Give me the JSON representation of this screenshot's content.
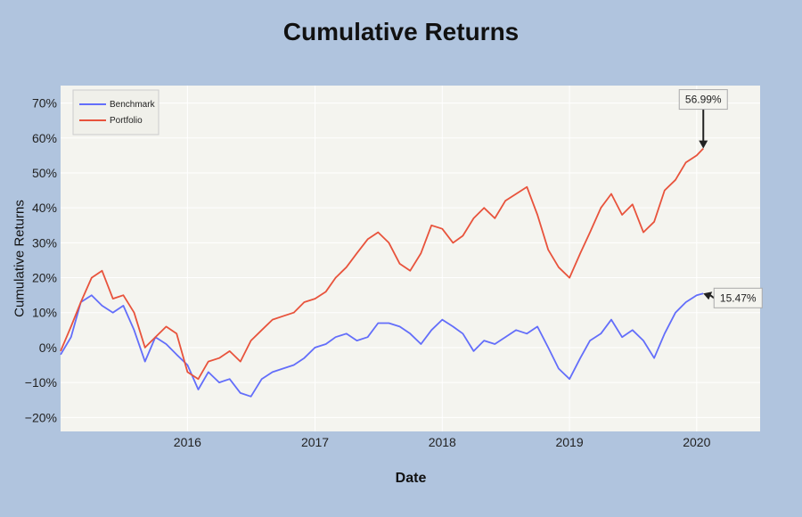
{
  "colors": {
    "background": "#b0c4de",
    "plot_background": "#f4f4ef",
    "benchmark": "#636efa",
    "portfolio": "#e8533c"
  },
  "chart_data": {
    "type": "line",
    "title": "Cumulative Returns",
    "xlabel": "Date",
    "ylabel": "Cumulative Returns",
    "y_unit": "%",
    "xlim": [
      "2015-01-02",
      "2020-07-01"
    ],
    "ylim": [
      -24,
      75
    ],
    "x_ticks": [
      "2016",
      "2017",
      "2018",
      "2019",
      "2020"
    ],
    "y_ticks": [
      "−20%",
      "−10%",
      "0%",
      "10%",
      "20%",
      "30%",
      "40%",
      "50%",
      "60%",
      "70%"
    ],
    "grid": true,
    "legend_position": "top-left",
    "series": [
      {
        "name": "Benchmark",
        "color": "#636efa",
        "points": [
          [
            "2015-01-02",
            -2
          ],
          [
            "2015-02-01",
            3
          ],
          [
            "2015-03-01",
            13
          ],
          [
            "2015-04-01",
            15
          ],
          [
            "2015-05-01",
            12
          ],
          [
            "2015-06-01",
            10
          ],
          [
            "2015-07-01",
            12
          ],
          [
            "2015-08-01",
            5
          ],
          [
            "2015-09-01",
            -4
          ],
          [
            "2015-10-01",
            3
          ],
          [
            "2015-11-01",
            1
          ],
          [
            "2015-12-01",
            -2
          ],
          [
            "2016-01-01",
            -5
          ],
          [
            "2016-02-01",
            -12
          ],
          [
            "2016-03-01",
            -7
          ],
          [
            "2016-04-01",
            -10
          ],
          [
            "2016-05-01",
            -9
          ],
          [
            "2016-06-01",
            -13
          ],
          [
            "2016-07-01",
            -14
          ],
          [
            "2016-08-01",
            -9
          ],
          [
            "2016-09-01",
            -7
          ],
          [
            "2016-10-01",
            -6
          ],
          [
            "2016-11-01",
            -5
          ],
          [
            "2016-12-01",
            -3
          ],
          [
            "2017-01-01",
            0
          ],
          [
            "2017-02-01",
            1
          ],
          [
            "2017-03-01",
            3
          ],
          [
            "2017-04-01",
            4
          ],
          [
            "2017-05-01",
            2
          ],
          [
            "2017-06-01",
            3
          ],
          [
            "2017-07-01",
            7
          ],
          [
            "2017-08-01",
            7
          ],
          [
            "2017-09-01",
            6
          ],
          [
            "2017-10-01",
            4
          ],
          [
            "2017-11-01",
            1
          ],
          [
            "2017-12-01",
            5
          ],
          [
            "2018-01-01",
            8
          ],
          [
            "2018-02-01",
            6
          ],
          [
            "2018-03-01",
            4
          ],
          [
            "2018-04-01",
            -1
          ],
          [
            "2018-05-01",
            2
          ],
          [
            "2018-06-01",
            1
          ],
          [
            "2018-07-01",
            3
          ],
          [
            "2018-08-01",
            5
          ],
          [
            "2018-09-01",
            4
          ],
          [
            "2018-10-01",
            6
          ],
          [
            "2018-11-01",
            0
          ],
          [
            "2018-12-01",
            -6
          ],
          [
            "2019-01-01",
            -9
          ],
          [
            "2019-02-01",
            -3
          ],
          [
            "2019-03-01",
            2
          ],
          [
            "2019-04-01",
            4
          ],
          [
            "2019-05-01",
            8
          ],
          [
            "2019-06-01",
            3
          ],
          [
            "2019-07-01",
            5
          ],
          [
            "2019-08-01",
            2
          ],
          [
            "2019-09-01",
            -3
          ],
          [
            "2019-10-01",
            4
          ],
          [
            "2019-11-01",
            10
          ],
          [
            "2019-12-01",
            13
          ],
          [
            "2020-01-01",
            15
          ],
          [
            "2020-01-20",
            15.47
          ]
        ]
      },
      {
        "name": "Portfolio",
        "color": "#e8533c",
        "points": [
          [
            "2015-01-02",
            -1
          ],
          [
            "2015-02-01",
            6
          ],
          [
            "2015-03-01",
            13
          ],
          [
            "2015-04-01",
            20
          ],
          [
            "2015-05-01",
            22
          ],
          [
            "2015-06-01",
            14
          ],
          [
            "2015-07-01",
            15
          ],
          [
            "2015-08-01",
            10
          ],
          [
            "2015-09-01",
            0
          ],
          [
            "2015-10-01",
            3
          ],
          [
            "2015-11-01",
            6
          ],
          [
            "2015-12-01",
            4
          ],
          [
            "2016-01-01",
            -7
          ],
          [
            "2016-02-01",
            -9
          ],
          [
            "2016-03-01",
            -4
          ],
          [
            "2016-04-01",
            -3
          ],
          [
            "2016-05-01",
            -1
          ],
          [
            "2016-06-01",
            -4
          ],
          [
            "2016-07-01",
            2
          ],
          [
            "2016-08-01",
            5
          ],
          [
            "2016-09-01",
            8
          ],
          [
            "2016-10-01",
            9
          ],
          [
            "2016-11-01",
            10
          ],
          [
            "2016-12-01",
            13
          ],
          [
            "2017-01-01",
            14
          ],
          [
            "2017-02-01",
            16
          ],
          [
            "2017-03-01",
            20
          ],
          [
            "2017-04-01",
            23
          ],
          [
            "2017-05-01",
            27
          ],
          [
            "2017-06-01",
            31
          ],
          [
            "2017-07-01",
            33
          ],
          [
            "2017-08-01",
            30
          ],
          [
            "2017-09-01",
            24
          ],
          [
            "2017-10-01",
            22
          ],
          [
            "2017-11-01",
            27
          ],
          [
            "2017-12-01",
            35
          ],
          [
            "2018-01-01",
            34
          ],
          [
            "2018-02-01",
            30
          ],
          [
            "2018-03-01",
            32
          ],
          [
            "2018-04-01",
            37
          ],
          [
            "2018-05-01",
            40
          ],
          [
            "2018-06-01",
            37
          ],
          [
            "2018-07-01",
            42
          ],
          [
            "2018-08-01",
            44
          ],
          [
            "2018-09-01",
            46
          ],
          [
            "2018-10-01",
            38
          ],
          [
            "2018-11-01",
            28
          ],
          [
            "2018-12-01",
            23
          ],
          [
            "2019-01-01",
            20
          ],
          [
            "2019-02-01",
            27
          ],
          [
            "2019-03-01",
            33
          ],
          [
            "2019-04-01",
            40
          ],
          [
            "2019-05-01",
            44
          ],
          [
            "2019-06-01",
            38
          ],
          [
            "2019-07-01",
            41
          ],
          [
            "2019-08-01",
            33
          ],
          [
            "2019-09-01",
            36
          ],
          [
            "2019-10-01",
            45
          ],
          [
            "2019-11-01",
            48
          ],
          [
            "2019-12-01",
            53
          ],
          [
            "2020-01-01",
            55
          ],
          [
            "2020-01-20",
            56.99
          ]
        ]
      }
    ],
    "annotations": [
      {
        "series": "Portfolio",
        "x": "2020-01-20",
        "y": 56.99,
        "text": "56.99%",
        "placement": "above"
      },
      {
        "series": "Benchmark",
        "x": "2020-01-20",
        "y": 15.47,
        "text": "15.47%",
        "placement": "right"
      }
    ]
  }
}
